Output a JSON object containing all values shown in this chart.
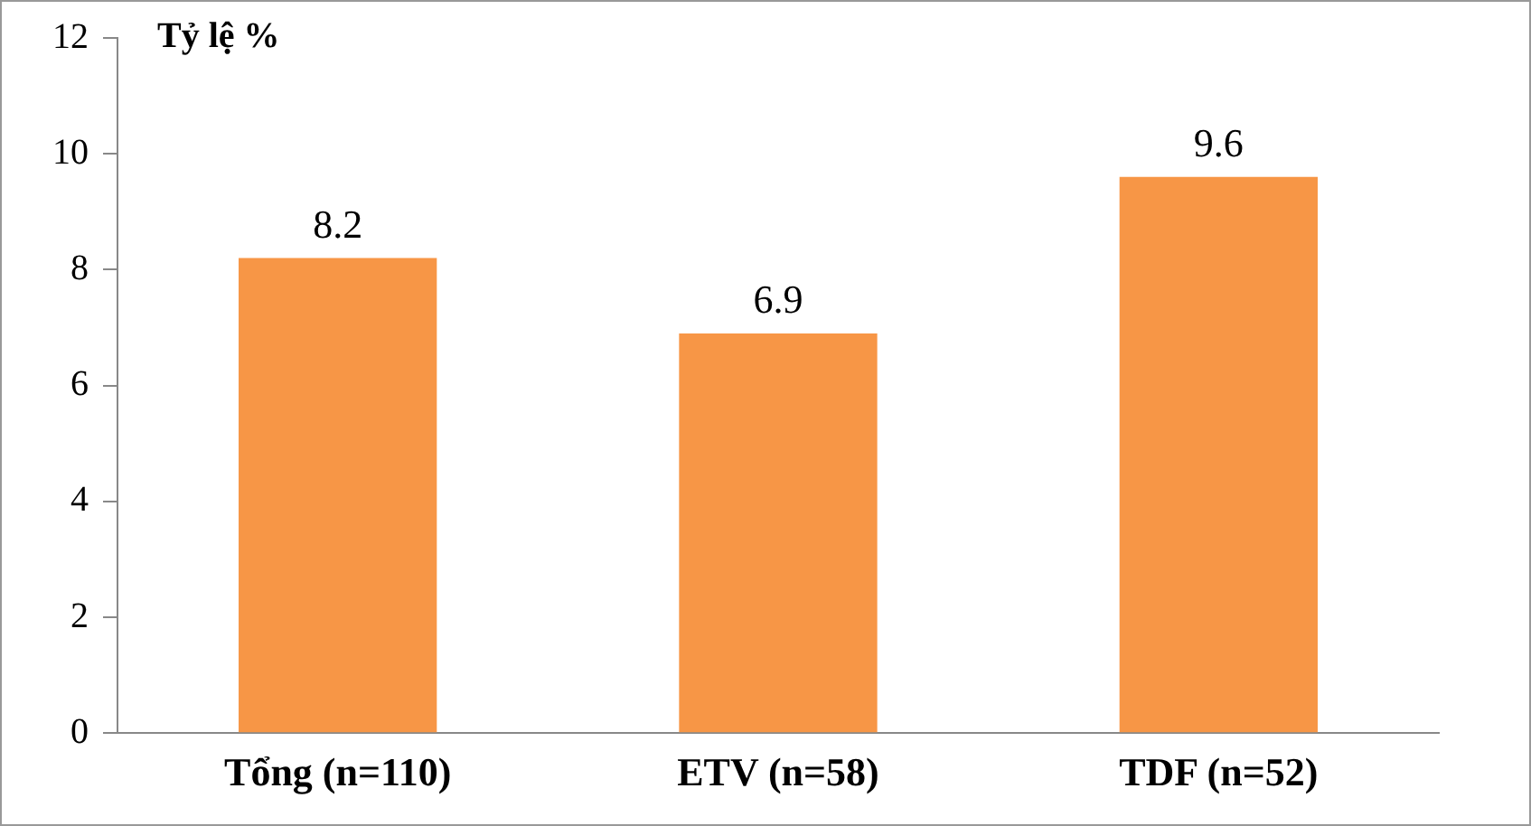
{
  "chart_data": {
    "type": "bar",
    "ylabel": "Tỷ lệ %",
    "categories": [
      "Tổng (n=110)",
      "ETV (n=58)",
      "TDF (n=52)"
    ],
    "values": [
      8.2,
      6.9,
      9.6
    ],
    "color": "#f79646",
    "ylim": [
      0,
      12
    ],
    "yticks": [
      0,
      2,
      4,
      6,
      8,
      10,
      12
    ],
    "grid": false,
    "legend": false,
    "data_labels": true
  }
}
